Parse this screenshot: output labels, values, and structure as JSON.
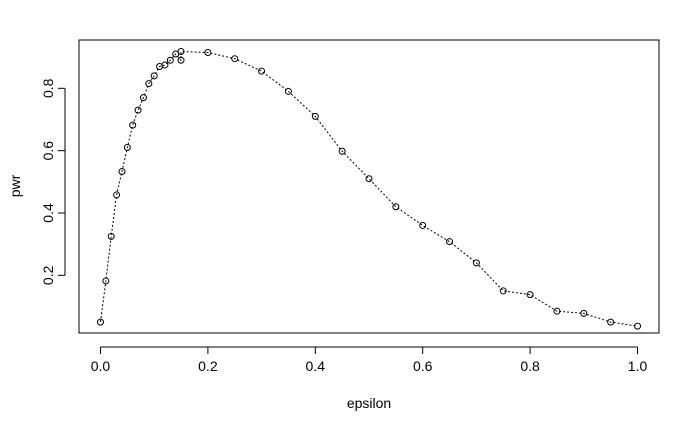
{
  "chart_data": {
    "type": "line",
    "xlabel": "epsilon",
    "ylabel": "pwr",
    "xlim": [
      -0.04,
      1.04
    ],
    "ylim": [
      0.015,
      0.955
    ],
    "xticks": [
      0.0,
      0.2,
      0.4,
      0.6,
      0.8,
      1.0
    ],
    "xtick_labels": [
      "0.0",
      "0.2",
      "0.4",
      "0.6",
      "0.8",
      "1.0"
    ],
    "yticks": [
      0.2,
      0.4,
      0.6,
      0.8
    ],
    "ytick_labels": [
      "0.2",
      "0.4",
      "0.6",
      "0.8"
    ],
    "grid": false,
    "line_style": "dotted",
    "marker": "open-circle",
    "series": [
      {
        "x": [
          0.0,
          0.01,
          0.02,
          0.03,
          0.04,
          0.05,
          0.06,
          0.07,
          0.08,
          0.09,
          0.1,
          0.11,
          0.12,
          0.13,
          0.14,
          0.15,
          0.15,
          0.2,
          0.25,
          0.3,
          0.35,
          0.4,
          0.45,
          0.5,
          0.55,
          0.6,
          0.65,
          0.7,
          0.75,
          0.8,
          0.85,
          0.9,
          0.95,
          1.0
        ],
        "values": [
          0.05,
          0.182,
          0.325,
          0.458,
          0.533,
          0.61,
          0.682,
          0.73,
          0.77,
          0.815,
          0.84,
          0.87,
          0.875,
          0.89,
          0.91,
          0.89,
          0.918,
          0.915,
          0.895,
          0.855,
          0.79,
          0.71,
          0.598,
          0.51,
          0.42,
          0.36,
          0.308,
          0.24,
          0.15,
          0.138,
          0.085,
          0.078,
          0.05,
          0.037
        ]
      }
    ]
  }
}
